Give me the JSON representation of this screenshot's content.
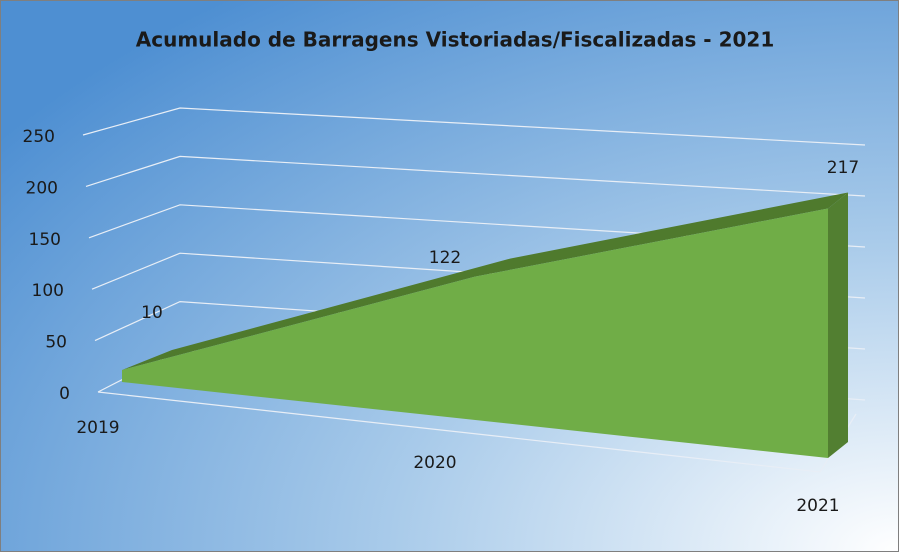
{
  "chart_data": {
    "type": "area",
    "title": "Acumulado de Barragens Vistoriadas/Fiscalizadas - 2021",
    "categories": [
      "2019",
      "2020",
      "2021"
    ],
    "values": [
      10,
      122,
      217
    ],
    "color": "#70ad47",
    "ylim": [
      0,
      250
    ],
    "yticks": [
      0,
      50,
      100,
      150,
      200,
      250
    ],
    "grid": true
  }
}
